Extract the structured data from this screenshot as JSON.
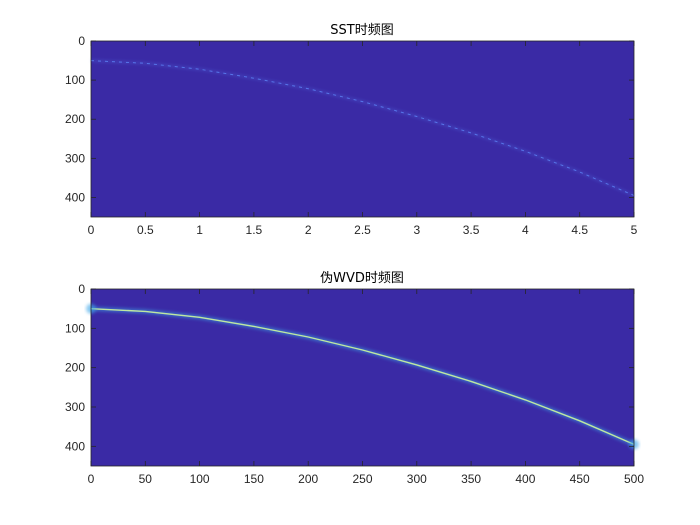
{
  "colors": {
    "background": "#3a2aa5",
    "ridge_sst": "#5a7cf0",
    "ridge_wvd": "#bfe8a0",
    "ridge_glow": "#3fa7e8",
    "axis": "#262626"
  },
  "chart_data": [
    {
      "type": "heatmap",
      "title": "SST时频图",
      "xlabel": "",
      "ylabel": "",
      "xlim": [
        0,
        5
      ],
      "ylim": [
        450,
        0
      ],
      "y_reversed": true,
      "xticks": [
        "0",
        "0.5",
        "1",
        "1.5",
        "2",
        "2.5",
        "3",
        "3.5",
        "4",
        "4.5",
        "5"
      ],
      "yticks": [
        "0",
        "100",
        "200",
        "300",
        "400"
      ],
      "ridge": {
        "name": "",
        "x": [
          0,
          0.5,
          1,
          1.5,
          2,
          2.5,
          3,
          3.5,
          4,
          4.5,
          5
        ],
        "y": [
          50,
          57,
          72,
          95,
          122,
          155,
          193,
          235,
          282,
          335,
          395
        ]
      }
    },
    {
      "type": "heatmap",
      "title": "伪WVD时频图",
      "xlabel": "",
      "ylabel": "",
      "xlim": [
        0,
        500
      ],
      "ylim": [
        450,
        0
      ],
      "y_reversed": true,
      "xticks": [
        "0",
        "50",
        "100",
        "150",
        "200",
        "250",
        "300",
        "350",
        "400",
        "450",
        "500"
      ],
      "yticks": [
        "0",
        "100",
        "200",
        "300",
        "400"
      ],
      "ridge": {
        "name": "",
        "x": [
          0,
          50,
          100,
          150,
          200,
          250,
          300,
          350,
          400,
          450,
          500
        ],
        "y": [
          50,
          57,
          72,
          95,
          122,
          155,
          193,
          235,
          282,
          335,
          395
        ]
      }
    }
  ]
}
